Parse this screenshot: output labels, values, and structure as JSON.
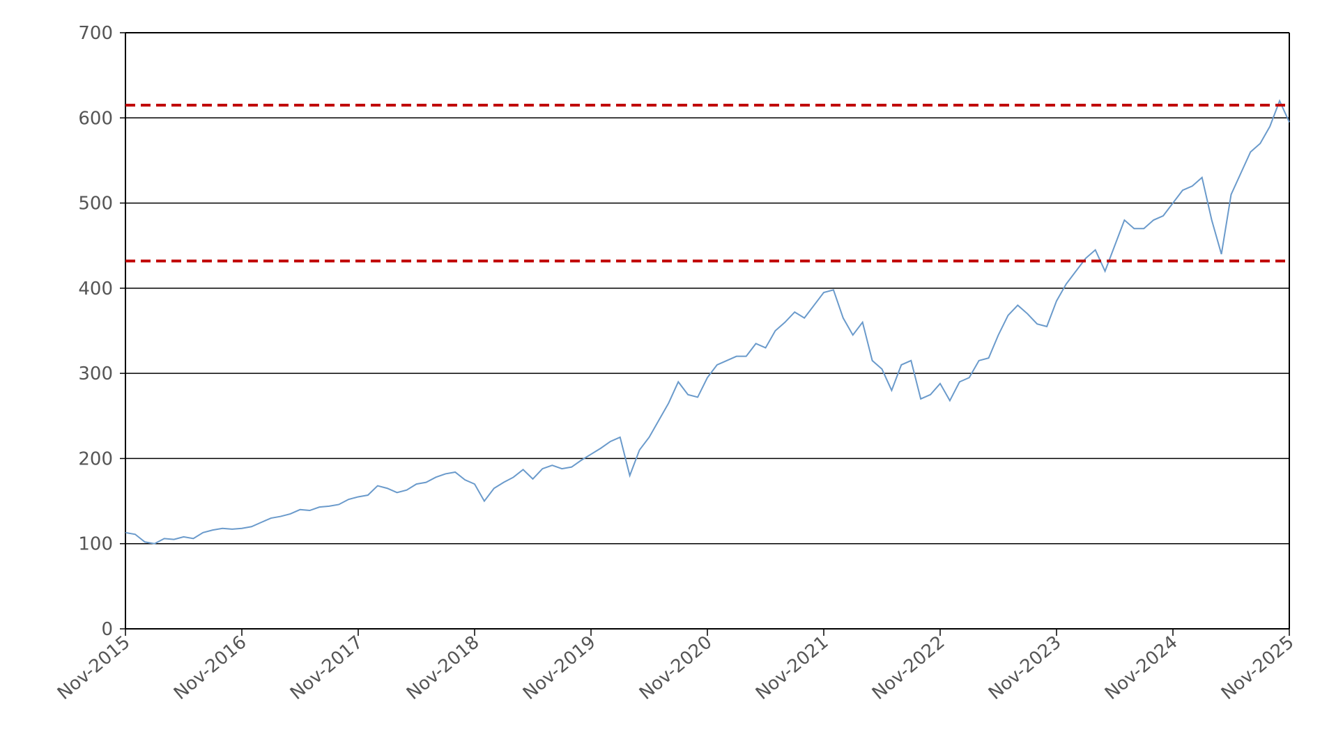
{
  "chart_data": {
    "type": "line",
    "x": [
      "Nov-2015",
      "Dec-2015",
      "Jan-2016",
      "Feb-2016",
      "Mar-2016",
      "Apr-2016",
      "May-2016",
      "Jun-2016",
      "Jul-2016",
      "Aug-2016",
      "Sep-2016",
      "Oct-2016",
      "Nov-2016",
      "Dec-2016",
      "Jan-2017",
      "Feb-2017",
      "Mar-2017",
      "Apr-2017",
      "May-2017",
      "Jun-2017",
      "Jul-2017",
      "Aug-2017",
      "Sep-2017",
      "Oct-2017",
      "Nov-2017",
      "Dec-2017",
      "Jan-2018",
      "Feb-2018",
      "Mar-2018",
      "Apr-2018",
      "May-2018",
      "Jun-2018",
      "Jul-2018",
      "Aug-2018",
      "Sep-2018",
      "Oct-2018",
      "Nov-2018",
      "Dec-2018",
      "Jan-2019",
      "Feb-2019",
      "Mar-2019",
      "Apr-2019",
      "May-2019",
      "Jun-2019",
      "Jul-2019",
      "Aug-2019",
      "Sep-2019",
      "Oct-2019",
      "Nov-2019",
      "Dec-2019",
      "Jan-2020",
      "Feb-2020",
      "Mar-2020",
      "Apr-2020",
      "May-2020",
      "Jun-2020",
      "Jul-2020",
      "Aug-2020",
      "Sep-2020",
      "Oct-2020",
      "Nov-2020",
      "Dec-2020",
      "Jan-2021",
      "Feb-2021",
      "Mar-2021",
      "Apr-2021",
      "May-2021",
      "Jun-2021",
      "Jul-2021",
      "Aug-2021",
      "Sep-2021",
      "Oct-2021",
      "Nov-2021",
      "Dec-2021",
      "Jan-2022",
      "Feb-2022",
      "Mar-2022",
      "Apr-2022",
      "May-2022",
      "Jun-2022",
      "Jul-2022",
      "Aug-2022",
      "Sep-2022",
      "Oct-2022",
      "Nov-2022",
      "Dec-2022",
      "Jan-2023",
      "Feb-2023",
      "Mar-2023",
      "Apr-2023",
      "May-2023",
      "Jun-2023",
      "Jul-2023",
      "Aug-2023",
      "Sep-2023",
      "Oct-2023",
      "Nov-2023",
      "Dec-2023",
      "Jan-2024",
      "Feb-2024",
      "Mar-2024",
      "Apr-2024",
      "May-2024",
      "Jun-2024",
      "Jul-2024",
      "Aug-2024",
      "Sep-2024",
      "Oct-2024",
      "Nov-2024",
      "Dec-2024",
      "Jan-2025",
      "Feb-2025",
      "Mar-2025",
      "Apr-2025",
      "May-2025",
      "Jun-2025",
      "Jul-2025",
      "Aug-2025",
      "Sep-2025",
      "Oct-2025",
      "Nov-2025"
    ],
    "series": [
      {
        "color": "#6a9acb",
        "values": [
          113,
          111,
          102,
          100,
          106,
          105,
          108,
          106,
          113,
          116,
          118,
          117,
          118,
          120,
          125,
          130,
          132,
          135,
          140,
          139,
          143,
          144,
          146,
          152,
          155,
          157,
          168,
          165,
          160,
          163,
          170,
          172,
          178,
          182,
          184,
          175,
          170,
          150,
          165,
          172,
          178,
          187,
          176,
          188,
          192,
          188,
          190,
          198,
          205,
          212,
          220,
          225,
          180,
          210,
          225,
          245,
          265,
          290,
          275,
          272,
          295,
          310,
          315,
          320,
          320,
          335,
          330,
          350,
          360,
          372,
          365,
          380,
          395,
          398,
          365,
          345,
          360,
          315,
          305,
          280,
          310,
          315,
          270,
          275,
          288,
          268,
          290,
          295,
          315,
          318,
          345,
          368,
          380,
          370,
          358,
          355,
          385,
          405,
          420,
          435,
          445,
          420,
          450,
          480,
          470,
          470,
          480,
          485,
          500,
          515,
          520,
          530,
          480,
          440,
          510,
          535,
          560,
          570,
          590,
          620,
          595
        ]
      }
    ],
    "reference_lines": [
      {
        "value": 615,
        "color": "#c00000"
      },
      {
        "value": 432,
        "color": "#c00000"
      }
    ],
    "xlim": [
      "Nov-2015",
      "Nov-2025"
    ],
    "xticks": [
      "Nov-2015",
      "Nov-2016",
      "Nov-2017",
      "Nov-2018",
      "Nov-2019",
      "Nov-2020",
      "Nov-2021",
      "Nov-2022",
      "Nov-2023",
      "Nov-2024",
      "Nov-2025"
    ],
    "ylim": [
      0,
      700
    ],
    "yticks": [
      0,
      100,
      200,
      300,
      400,
      500,
      600,
      700
    ],
    "grid": true
  }
}
